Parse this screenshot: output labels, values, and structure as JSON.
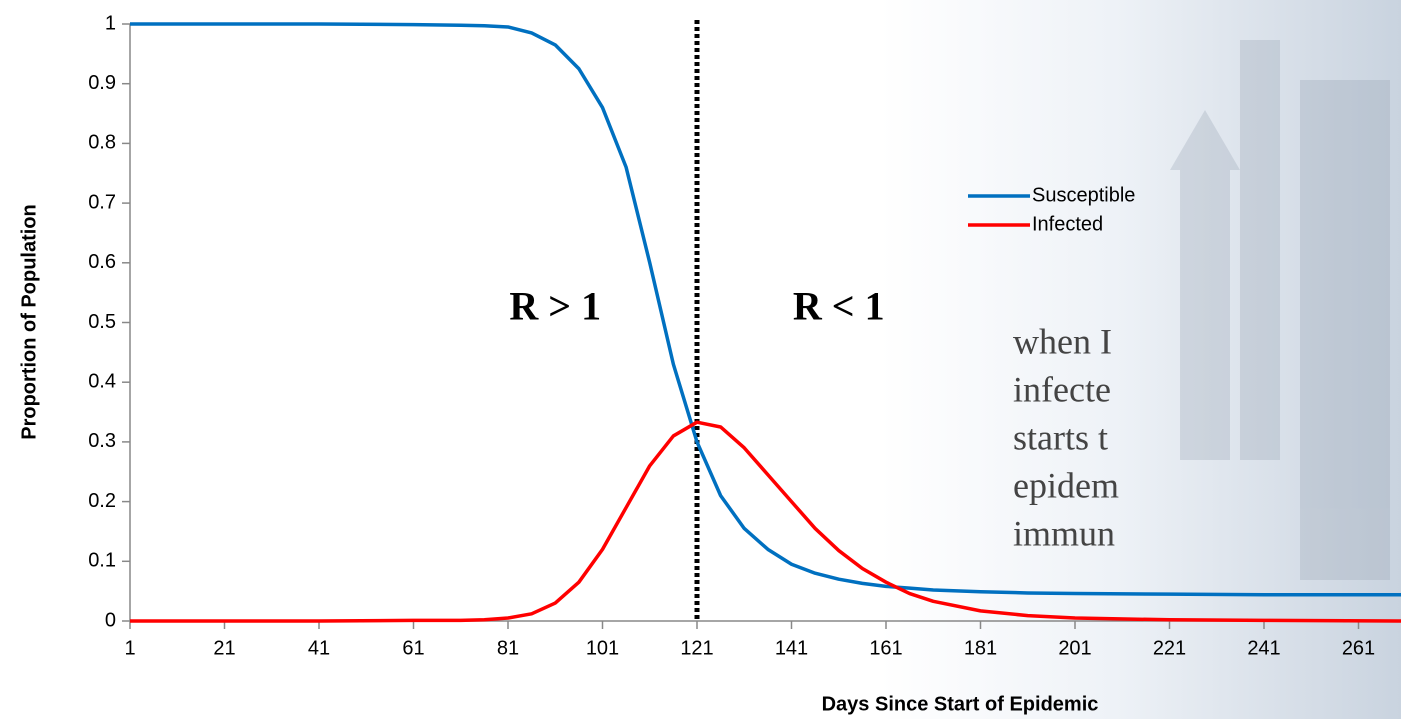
{
  "chart_data": {
    "type": "line",
    "xlabel": "Days Since Start of Epidemic",
    "ylabel": "Proportion of Population",
    "x": [
      1,
      21,
      41,
      61,
      71,
      76,
      81,
      86,
      91,
      96,
      101,
      106,
      111,
      116,
      121,
      126,
      131,
      136,
      141,
      146,
      151,
      156,
      161,
      166,
      171,
      181,
      191,
      201,
      221,
      241,
      270
    ],
    "series": [
      {
        "name": "Susceptible",
        "color": "#0070c0",
        "values": [
          1.0,
          1.0,
          1.0,
          0.999,
          0.998,
          0.997,
          0.995,
          0.985,
          0.965,
          0.925,
          0.86,
          0.76,
          0.6,
          0.43,
          0.3,
          0.21,
          0.155,
          0.12,
          0.095,
          0.08,
          0.07,
          0.063,
          0.058,
          0.055,
          0.052,
          0.049,
          0.047,
          0.046,
          0.045,
          0.044,
          0.044
        ]
      },
      {
        "name": "Infected",
        "color": "#ff0000",
        "values": [
          0,
          0,
          0,
          0.001,
          0.001,
          0.002,
          0.005,
          0.012,
          0.03,
          0.065,
          0.12,
          0.19,
          0.26,
          0.31,
          0.333,
          0.325,
          0.29,
          0.245,
          0.2,
          0.155,
          0.118,
          0.088,
          0.065,
          0.046,
          0.033,
          0.017,
          0.009,
          0.005,
          0.002,
          0.001,
          0
        ]
      }
    ],
    "xlim": [
      1,
      270
    ],
    "xticks": [
      1,
      21,
      41,
      61,
      81,
      101,
      121,
      141,
      161,
      181,
      201,
      221,
      241,
      261
    ],
    "ylim": [
      0,
      1
    ],
    "yticks": [
      0,
      0.1,
      0.2,
      0.3,
      0.4,
      0.5,
      0.6,
      0.7,
      0.8,
      0.9,
      1
    ],
    "vline": 121,
    "annotations": [
      {
        "text": "R > 1",
        "x": 91,
        "y": 0.52
      },
      {
        "text": "R < 1",
        "x": 151,
        "y": 0.52
      }
    ],
    "legend": "upper right"
  },
  "background_text": [
    "when I",
    "infecte",
    "starts t",
    "epidem",
    "immun"
  ]
}
